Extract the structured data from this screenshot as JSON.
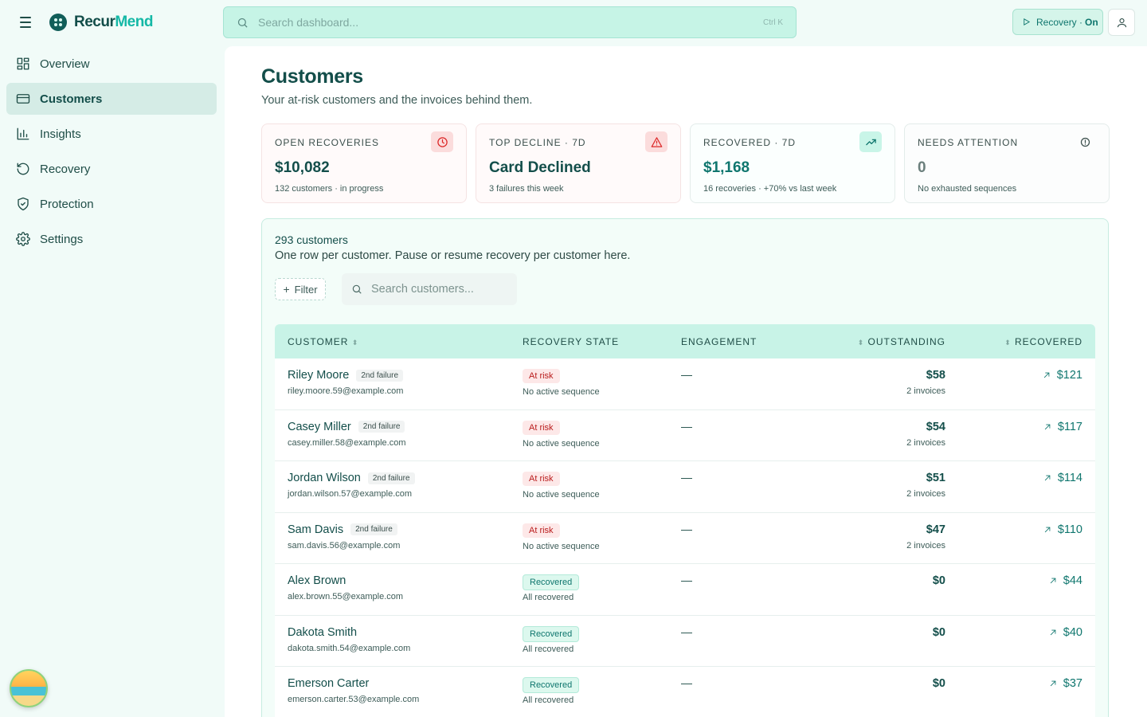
{
  "brand": {
    "name_part1": "Recur",
    "name_part2": "Mend"
  },
  "nav": [
    {
      "label": "Overview",
      "icon": "grid-icon",
      "active": false
    },
    {
      "label": "Customers",
      "icon": "card-icon",
      "active": true
    },
    {
      "label": "Insights",
      "icon": "bar-chart-icon",
      "active": false
    },
    {
      "label": "Recovery",
      "icon": "rotate-icon",
      "active": false
    },
    {
      "label": "Protection",
      "icon": "shield-icon",
      "active": false
    },
    {
      "label": "Settings",
      "icon": "gear-icon",
      "active": false
    }
  ],
  "topbar": {
    "search_placeholder": "Search dashboard...",
    "search_shortcut": "Ctrl K",
    "recovery_label": "Recovery ·",
    "recovery_state": "On"
  },
  "page": {
    "title": "Customers",
    "subtitle": "Your at-risk customers and the invoices behind them."
  },
  "stats": [
    {
      "label": "Open recoveries",
      "value": "$10,082",
      "note": "132 customers · in progress",
      "icon": "clock-icon"
    },
    {
      "label": "Top decline · 7d",
      "value": "Card Declined",
      "note": "3 failures this week",
      "icon": "warning-icon"
    },
    {
      "label": "Recovered · 7d",
      "value": "$1,168",
      "note": "16 recoveries · +70% vs last week",
      "icon": "trend-up-icon"
    },
    {
      "label": "Needs attention",
      "value": "0",
      "note": "No exhausted sequences",
      "icon": "info-icon"
    }
  ],
  "panel": {
    "count": "293 customers",
    "description": "One row per customer. Pause or resume recovery per customer here.",
    "filter_label": "Filter",
    "search_placeholder": "Search customers..."
  },
  "table": {
    "headers": {
      "customer": "CUSTOMER",
      "state": "RECOVERY STATE",
      "engagement": "ENGAGEMENT",
      "outstanding": "OUTSTANDING",
      "recovered": "RECOVERED"
    },
    "rows": [
      {
        "name": "Riley Moore",
        "tag": "2nd failure",
        "email": "riley.moore.59@example.com",
        "state": "At risk",
        "state_sub": "No active sequence",
        "engagement": "—",
        "outstanding": "$58",
        "invoices": "2 invoices",
        "recovered": "$121"
      },
      {
        "name": "Casey Miller",
        "tag": "2nd failure",
        "email": "casey.miller.58@example.com",
        "state": "At risk",
        "state_sub": "No active sequence",
        "engagement": "—",
        "outstanding": "$54",
        "invoices": "2 invoices",
        "recovered": "$117"
      },
      {
        "name": "Jordan Wilson",
        "tag": "2nd failure",
        "email": "jordan.wilson.57@example.com",
        "state": "At risk",
        "state_sub": "No active sequence",
        "engagement": "—",
        "outstanding": "$51",
        "invoices": "2 invoices",
        "recovered": "$114"
      },
      {
        "name": "Sam Davis",
        "tag": "2nd failure",
        "email": "sam.davis.56@example.com",
        "state": "At risk",
        "state_sub": "No active sequence",
        "engagement": "—",
        "outstanding": "$47",
        "invoices": "2 invoices",
        "recovered": "$110"
      },
      {
        "name": "Alex Brown",
        "tag": "",
        "email": "alex.brown.55@example.com",
        "state": "Recovered",
        "state_sub": "All recovered",
        "engagement": "—",
        "outstanding": "$0",
        "invoices": "",
        "recovered": "$44"
      },
      {
        "name": "Dakota Smith",
        "tag": "",
        "email": "dakota.smith.54@example.com",
        "state": "Recovered",
        "state_sub": "All recovered",
        "engagement": "—",
        "outstanding": "$0",
        "invoices": "",
        "recovered": "$40"
      },
      {
        "name": "Emerson Carter",
        "tag": "",
        "email": "emerson.carter.53@example.com",
        "state": "Recovered",
        "state_sub": "All recovered",
        "engagement": "—",
        "outstanding": "$0",
        "invoices": "",
        "recovered": "$37"
      }
    ]
  },
  "colors": {
    "brand": "#134e4a",
    "accent": "#14b8a6",
    "danger": "#dc2626",
    "success": "#0f766e"
  }
}
